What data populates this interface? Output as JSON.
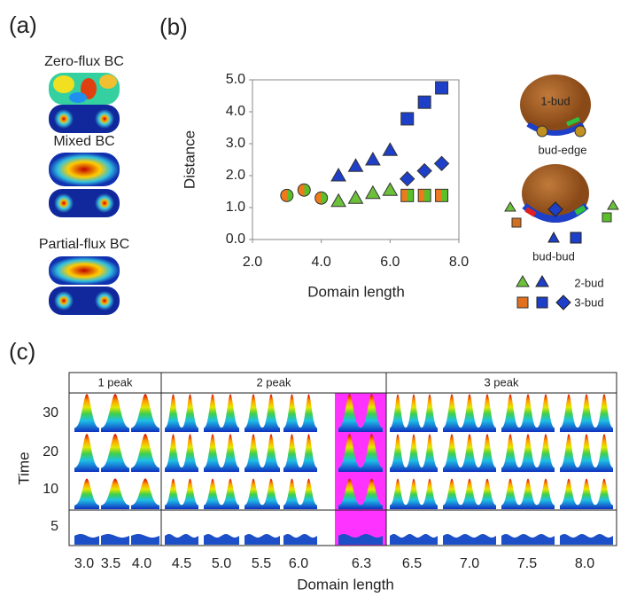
{
  "panel_a": {
    "label": "(a)",
    "conditions": [
      "Zero-flux BC",
      "Mixed BC",
      "Partial-flux BC"
    ]
  },
  "chart_data": {
    "type": "scatter",
    "label": "(b)",
    "x_label": "Domain length",
    "y_label": "Distance",
    "xlim": [
      2,
      8
    ],
    "ylim": [
      0,
      5
    ],
    "xticks": [
      {
        "value": 2,
        "label": "2.0"
      },
      {
        "value": 4,
        "label": "4.0"
      },
      {
        "value": 6,
        "label": "6.0"
      },
      {
        "value": 8,
        "label": "8.0"
      }
    ],
    "yticks": [
      {
        "value": 0,
        "label": "0.0"
      },
      {
        "value": 1,
        "label": "1.0"
      },
      {
        "value": 2,
        "label": "2.0"
      },
      {
        "value": 3,
        "label": "3.0"
      },
      {
        "value": 4,
        "label": "4.0"
      },
      {
        "value": 5,
        "label": "5.0"
      }
    ],
    "series": [
      {
        "marker": "circle",
        "colors": [
          "#f07a1a",
          "#5cbf2a"
        ],
        "x": [
          3.0,
          3.5,
          4.0
        ],
        "values": [
          1.38,
          1.55,
          1.3
        ]
      },
      {
        "marker": "triangle",
        "colors": [
          "#6cc03a",
          "#6cc03a"
        ],
        "x": [
          4.5,
          5.0,
          5.5,
          6.0
        ],
        "values": [
          1.2,
          1.3,
          1.45,
          1.55
        ]
      },
      {
        "marker": "triangle",
        "colors": [
          "#1e3fc8",
          "#1e3fc8"
        ],
        "x": [
          4.5,
          5.0,
          5.5,
          6.0
        ],
        "values": [
          2.0,
          2.3,
          2.5,
          2.8
        ]
      },
      {
        "marker": "square",
        "colors": [
          "#f07a1a",
          "#5cbf2a"
        ],
        "x": [
          6.5,
          7.0,
          7.5
        ],
        "values": [
          1.38,
          1.38,
          1.38
        ]
      },
      {
        "marker": "square",
        "colors": [
          "#1e3fc8",
          "#1e3fc8"
        ],
        "x": [
          6.5,
          7.0,
          7.5
        ],
        "values": [
          3.78,
          4.3,
          4.75
        ]
      },
      {
        "marker": "diamond",
        "colors": [
          "#1e3fc8",
          "#1e3fc8"
        ],
        "x": [
          6.5,
          7.0,
          7.5
        ],
        "values": [
          1.9,
          2.15,
          2.38
        ]
      }
    ]
  },
  "diagram": {
    "one_bud": "1-bud",
    "bud_edge": "bud-edge",
    "bud_bud": "bud-bud",
    "legend": [
      "2-bud",
      "3-bud"
    ]
  },
  "panel_c": {
    "label": "(c)",
    "sections": [
      "1 peak",
      "2 peak",
      "3 peak"
    ],
    "y_label": "Time",
    "times": [
      "30",
      "20",
      "10",
      "5"
    ],
    "x_labels": [
      "3.0",
      "3.5",
      "4.0",
      "4.5",
      "5.0",
      "5.5",
      "6.0",
      "6.3",
      "6.5",
      "7.0",
      "7.5",
      "8.0"
    ],
    "x_title": "Domain length"
  }
}
